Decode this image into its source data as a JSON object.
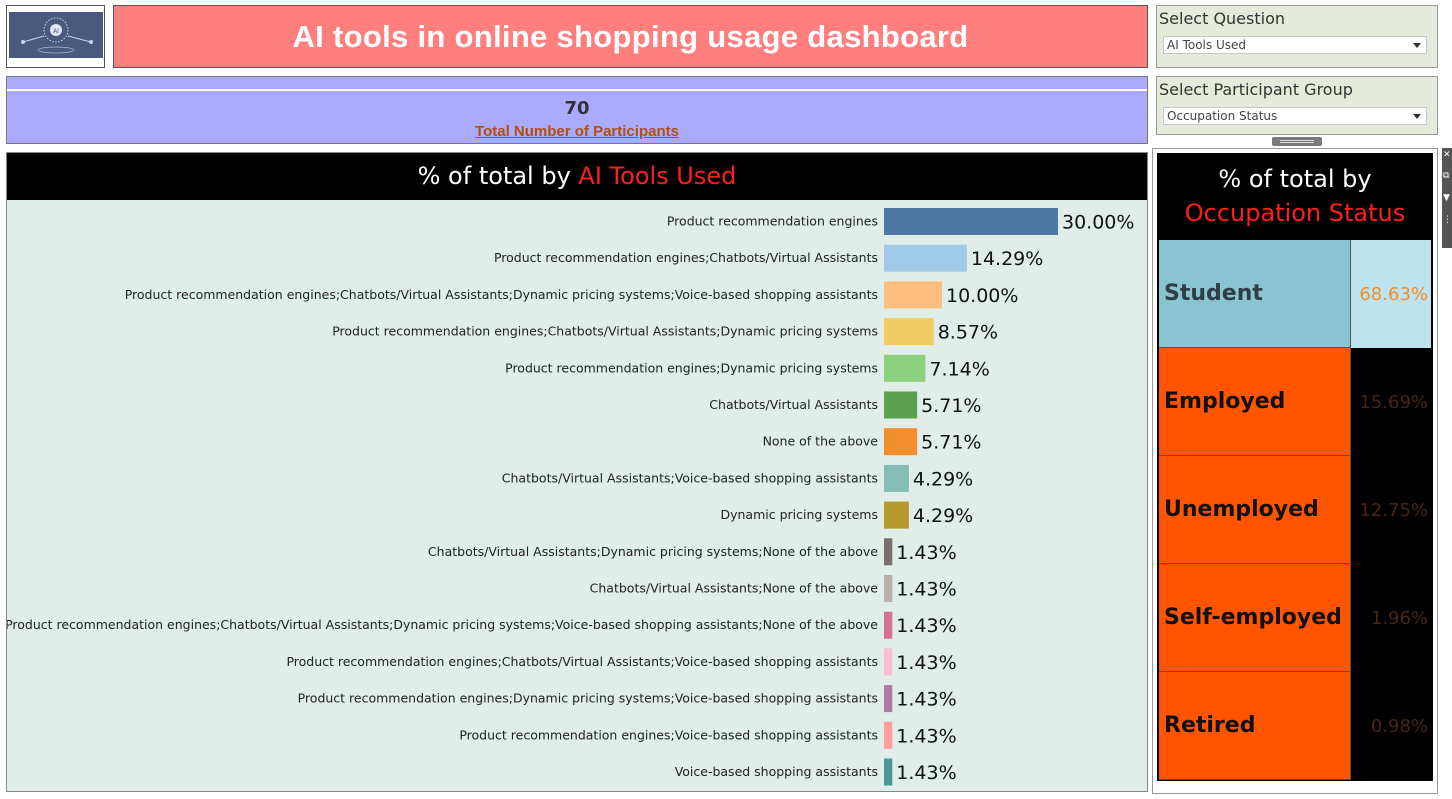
{
  "header": {
    "title": "AI tools in online shopping usage dashboard"
  },
  "filters": {
    "question_label": "Select Question",
    "question_value": "AI Tools Used",
    "group_label": "Select Participant Group",
    "group_value": "Occupation Status"
  },
  "kpi": {
    "value": "70",
    "label": "Total Number of Participants"
  },
  "main_chart": {
    "title_prefix": "% of total by",
    "title_accent": "AI Tools Used"
  },
  "side_chart": {
    "title_prefix": "% of total by",
    "title_accent": "Occupation Status"
  },
  "colors": {
    "title_bg": "#ff7f7f",
    "kpi_bg": "#aaaaff",
    "accent_red": "#ff1e1e",
    "orange": "#ff5500"
  },
  "chart_data": [
    {
      "type": "bar",
      "orientation": "horizontal",
      "title": "% of total by AI Tools Used",
      "categories": [
        "Product recommendation engines",
        "Product recommendation engines;Chatbots/Virtual Assistants",
        "Product recommendation engines;Chatbots/Virtual Assistants;Dynamic pricing systems;Voice-based shopping assistants",
        "Product recommendation engines;Chatbots/Virtual Assistants;Dynamic pricing systems",
        "Product recommendation engines;Dynamic pricing systems",
        "Chatbots/Virtual Assistants",
        "None of the above",
        "Chatbots/Virtual Assistants;Voice-based shopping assistants",
        "Dynamic pricing systems",
        "Chatbots/Virtual Assistants;Dynamic pricing systems;None of the above",
        "Chatbots/Virtual Assistants;None of the above",
        "Product recommendation engines;Chatbots/Virtual Assistants;Dynamic pricing systems;Voice-based shopping assistants;None of the above",
        "Product recommendation engines;Chatbots/Virtual Assistants;Voice-based shopping assistants",
        "Product recommendation engines;Dynamic pricing systems;Voice-based shopping assistants",
        "Product recommendation engines;Voice-based shopping assistants",
        "Voice-based shopping assistants"
      ],
      "values": [
        30.0,
        14.29,
        10.0,
        8.57,
        7.14,
        5.71,
        5.71,
        4.29,
        4.29,
        1.43,
        1.43,
        1.43,
        1.43,
        1.43,
        1.43,
        1.43
      ],
      "labels": [
        "30.00%",
        "14.29%",
        "10.00%",
        "8.57%",
        "7.14%",
        "5.71%",
        "5.71%",
        "4.29%",
        "4.29%",
        "1.43%",
        "1.43%",
        "1.43%",
        "1.43%",
        "1.43%",
        "1.43%",
        "1.43%"
      ],
      "colors": [
        "#4e79a7",
        "#a0cbe8",
        "#ffbe7d",
        "#f1ce63",
        "#8cd17d",
        "#59a14f",
        "#f28e2b",
        "#86bcb6",
        "#b6992d",
        "#79706e",
        "#bab0ac",
        "#d37295",
        "#fabfd2",
        "#b07aa1",
        "#ff9d9a",
        "#499894"
      ],
      "xlim": [
        0,
        30
      ],
      "grid": false
    },
    {
      "type": "table",
      "title": "% of total by Occupation Status",
      "categories": [
        "Student",
        "Employed",
        "Unemployed",
        "Self-employed",
        "Retired"
      ],
      "values": [
        68.63,
        15.69,
        12.75,
        1.96,
        0.98
      ],
      "labels": [
        "68.63%",
        "15.69%",
        "12.75%",
        "1.96%",
        "0.98%"
      ],
      "highlighted": "Student"
    }
  ]
}
